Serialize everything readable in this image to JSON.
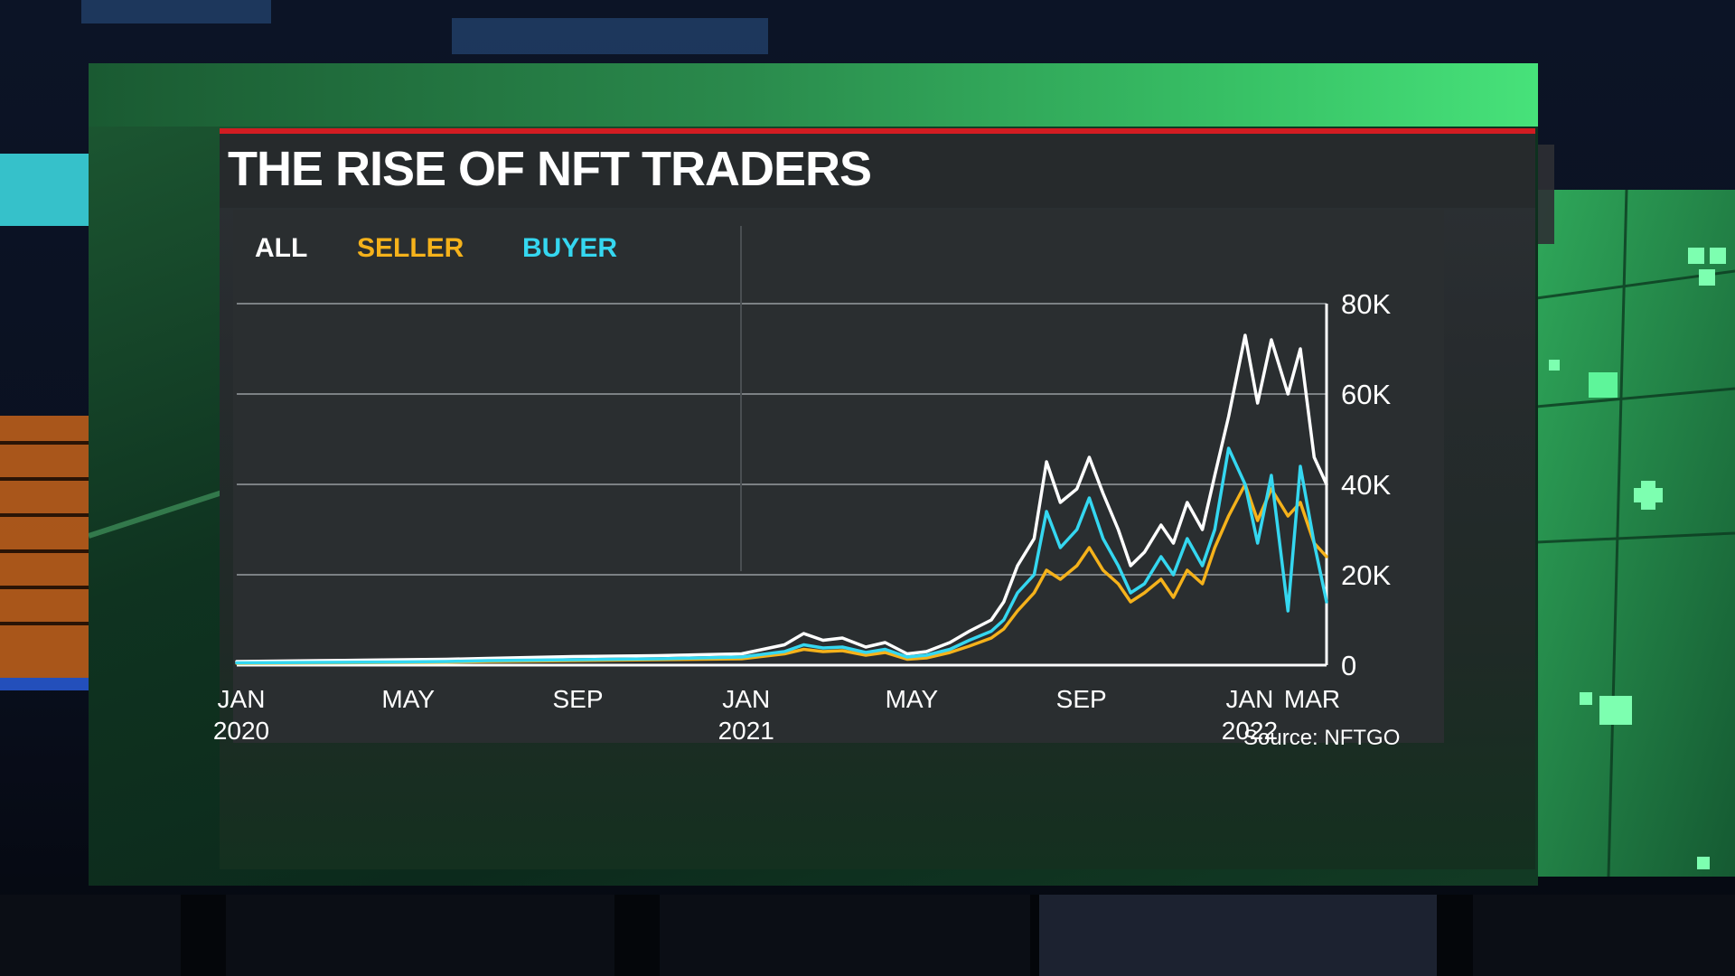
{
  "title": "THE RISE OF NFT TRADERS",
  "legend": [
    {
      "label": "ALL",
      "color": "#ffffff"
    },
    {
      "label": "SELLER",
      "color": "#f5b21b"
    },
    {
      "label": "BUYER",
      "color": "#35d7f0"
    }
  ],
  "source": "Source: NFTGO",
  "chart_data": {
    "type": "line",
    "title": "THE RISE OF NFT TRADERS",
    "xlabel": "",
    "ylabel": "",
    "ylim": [
      0,
      80000
    ],
    "grid": true,
    "legend_position": "top-left",
    "y_ticks": [
      "0",
      "20K",
      "40K",
      "60K",
      "80K"
    ],
    "y_tick_values": [
      0,
      20000,
      40000,
      60000,
      80000
    ],
    "x_ticks": [
      {
        "line1": "JAN",
        "line2": "2020",
        "date": "2020-01"
      },
      {
        "line1": "MAY",
        "line2": "",
        "date": "2020-05"
      },
      {
        "line1": "SEP",
        "line2": "",
        "date": "2020-09"
      },
      {
        "line1": "JAN",
        "line2": "2021",
        "date": "2021-01"
      },
      {
        "line1": "MAY",
        "line2": "",
        "date": "2021-05"
      },
      {
        "line1": "SEP",
        "line2": "",
        "date": "2021-09"
      },
      {
        "line1": "JAN",
        "line2": "2022",
        "date": "2022-01"
      },
      {
        "line1": "MAR",
        "line2": "",
        "date": "2022-03"
      }
    ],
    "x": [
      "2020-01",
      "2020-02",
      "2020-03",
      "2020-04",
      "2020-05",
      "2020-06",
      "2020-07",
      "2020-08",
      "2020-09",
      "2020-10",
      "2020-11",
      "2020-12",
      "2021-01",
      "2021-02",
      "2021-02-15",
      "2021-03",
      "2021-03-15",
      "2021-04",
      "2021-04-15",
      "2021-05",
      "2021-05-15",
      "2021-06",
      "2021-06-15",
      "2021-07",
      "2021-07-10",
      "2021-07-20",
      "2021-08",
      "2021-08-10",
      "2021-08-20",
      "2021-09",
      "2021-09-10",
      "2021-09-20",
      "2021-10",
      "2021-10-10",
      "2021-10-20",
      "2021-11",
      "2021-11-10",
      "2021-11-20",
      "2021-12",
      "2021-12-10",
      "2021-12-20",
      "2022-01",
      "2022-01-10",
      "2022-01-20",
      "2022-02",
      "2022-02-10",
      "2022-02-20",
      "2022-03"
    ],
    "series": [
      {
        "name": "ALL",
        "color": "#ffffff",
        "values": [
          800,
          900,
          1000,
          1100,
          1200,
          1300,
          1500,
          1700,
          1900,
          2000,
          2100,
          2300,
          2500,
          4500,
          7000,
          5500,
          6000,
          4000,
          5000,
          2500,
          3000,
          5000,
          7500,
          10000,
          14000,
          22000,
          28000,
          45000,
          36000,
          39000,
          46000,
          38000,
          30000,
          22000,
          25000,
          31000,
          27000,
          36000,
          30000,
          42000,
          55000,
          73000,
          58000,
          72000,
          60000,
          70000,
          46000,
          40000
        ]
      },
      {
        "name": "SELLER",
        "color": "#f5b21b",
        "values": [
          400,
          450,
          500,
          550,
          600,
          650,
          800,
          900,
          1000,
          1100,
          1200,
          1300,
          1400,
          2500,
          3500,
          3000,
          3200,
          2200,
          2800,
          1300,
          1600,
          2800,
          4200,
          6000,
          8000,
          12000,
          16000,
          21000,
          19000,
          22000,
          26000,
          21000,
          18000,
          14000,
          16000,
          19000,
          15000,
          21000,
          18000,
          26000,
          33000,
          40000,
          32000,
          39000,
          33000,
          36000,
          27000,
          24000
        ]
      },
      {
        "name": "BUYER",
        "color": "#35d7f0",
        "values": [
          500,
          550,
          600,
          650,
          700,
          800,
          1000,
          1100,
          1200,
          1300,
          1400,
          1600,
          1800,
          3000,
          4500,
          3800,
          4000,
          2800,
          3500,
          1800,
          2200,
          3500,
          5500,
          7500,
          10000,
          16000,
          20000,
          34000,
          26000,
          30000,
          37000,
          28000,
          22000,
          16000,
          18000,
          24000,
          20000,
          28000,
          22000,
          30000,
          48000,
          40000,
          27000,
          42000,
          12000,
          44000,
          27000,
          14000
        ]
      }
    ]
  }
}
